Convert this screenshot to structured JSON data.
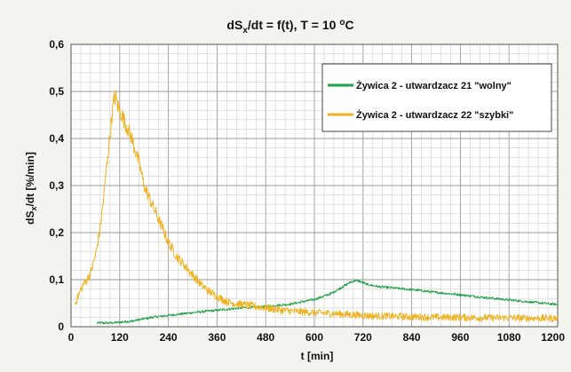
{
  "chart_data": {
    "type": "line",
    "title_main": "dS",
    "title_sub": "x",
    "title_rest": "/dt = f(t), T = 10 ",
    "title_sup": "o",
    "title_end": "C",
    "xlabel": "t [min]",
    "ylabel_main": "dS",
    "ylabel_sub": "x",
    "ylabel_rest": "/dt  [%/min]",
    "xlim": [
      0,
      1200
    ],
    "ylim": [
      0,
      0.6
    ],
    "x_ticks": [
      0,
      120,
      240,
      360,
      480,
      600,
      720,
      840,
      960,
      1080,
      1200
    ],
    "x_tick_labels": [
      "0",
      "120",
      "240",
      "360",
      "480",
      "600",
      "720",
      "840",
      "960",
      "1080",
      "1200"
    ],
    "y_ticks": [
      0,
      0.1,
      0.2,
      0.3,
      0.4,
      0.5,
      0.6
    ],
    "y_tick_labels": [
      "0",
      "0,1",
      "0,2",
      "0,3",
      "0,4",
      "0,5",
      "0,6"
    ],
    "grid": true,
    "legend_position": "top-right",
    "series": [
      {
        "name": "Żywica 2 - utwardzacz 21 \"wolny\"",
        "color": "#1fa046",
        "x": [
          65,
          80,
          100,
          150,
          200,
          250,
          300,
          360,
          420,
          480,
          540,
          600,
          640,
          670,
          690,
          700,
          710,
          730,
          760,
          800,
          850,
          900,
          960,
          1020,
          1080,
          1140,
          1200
        ],
        "y": [
          0.008,
          0.008,
          0.008,
          0.012,
          0.02,
          0.025,
          0.03,
          0.035,
          0.04,
          0.043,
          0.048,
          0.058,
          0.07,
          0.085,
          0.095,
          0.098,
          0.097,
          0.09,
          0.085,
          0.082,
          0.078,
          0.073,
          0.068,
          0.062,
          0.057,
          0.052,
          0.047
        ]
      },
      {
        "name": "Żywica 2 - utwardzacz 22 \"szybki\"",
        "color": "#f0b21e",
        "x": [
          10,
          20,
          30,
          40,
          50,
          60,
          70,
          80,
          90,
          100,
          105,
          110,
          115,
          120,
          130,
          140,
          150,
          160,
          170,
          180,
          200,
          220,
          240,
          260,
          280,
          300,
          320,
          340,
          360,
          380,
          400,
          440,
          480,
          520,
          560,
          600,
          650,
          700,
          750,
          800,
          850,
          900,
          960,
          1020,
          1080,
          1140,
          1200
        ],
        "y": [
          0.05,
          0.07,
          0.09,
          0.1,
          0.12,
          0.15,
          0.2,
          0.27,
          0.36,
          0.44,
          0.48,
          0.49,
          0.47,
          0.46,
          0.44,
          0.42,
          0.4,
          0.37,
          0.34,
          0.3,
          0.26,
          0.22,
          0.18,
          0.15,
          0.13,
          0.11,
          0.09,
          0.075,
          0.065,
          0.055,
          0.05,
          0.045,
          0.04,
          0.035,
          0.032,
          0.03,
          0.028,
          0.025,
          0.023,
          0.022,
          0.021,
          0.02,
          0.02,
          0.019,
          0.019,
          0.018,
          0.018
        ]
      }
    ]
  }
}
